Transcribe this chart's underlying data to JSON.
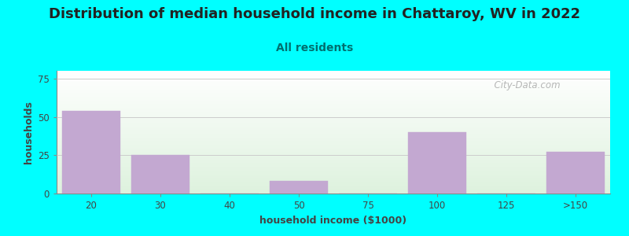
{
  "title": "Distribution of median household income in Chattaroy, WV in 2022",
  "subtitle": "All residents",
  "xlabel": "household income ($1000)",
  "ylabel": "households",
  "bar_labels": [
    "20",
    "30",
    "40",
    "50",
    "75",
    "100",
    "125",
    ">150"
  ],
  "bar_values": [
    54,
    25,
    0,
    8,
    0,
    40,
    0,
    27
  ],
  "bar_color": "#C3A8D1",
  "bar_edgecolor": "#C3A8D1",
  "yticks": [
    0,
    25,
    50,
    75
  ],
  "ylim": [
    0,
    80
  ],
  "background_color": "#00FFFF",
  "plot_bg_top": "#FFFFFF",
  "plot_bg_bottom": "#DDEEDD",
  "title_fontsize": 13,
  "subtitle_fontsize": 10,
  "subtitle_color": "#007070",
  "axis_label_fontsize": 9,
  "tick_fontsize": 8.5,
  "watermark_text": "  City-Data.com",
  "watermark_color": "#AAAAAA"
}
